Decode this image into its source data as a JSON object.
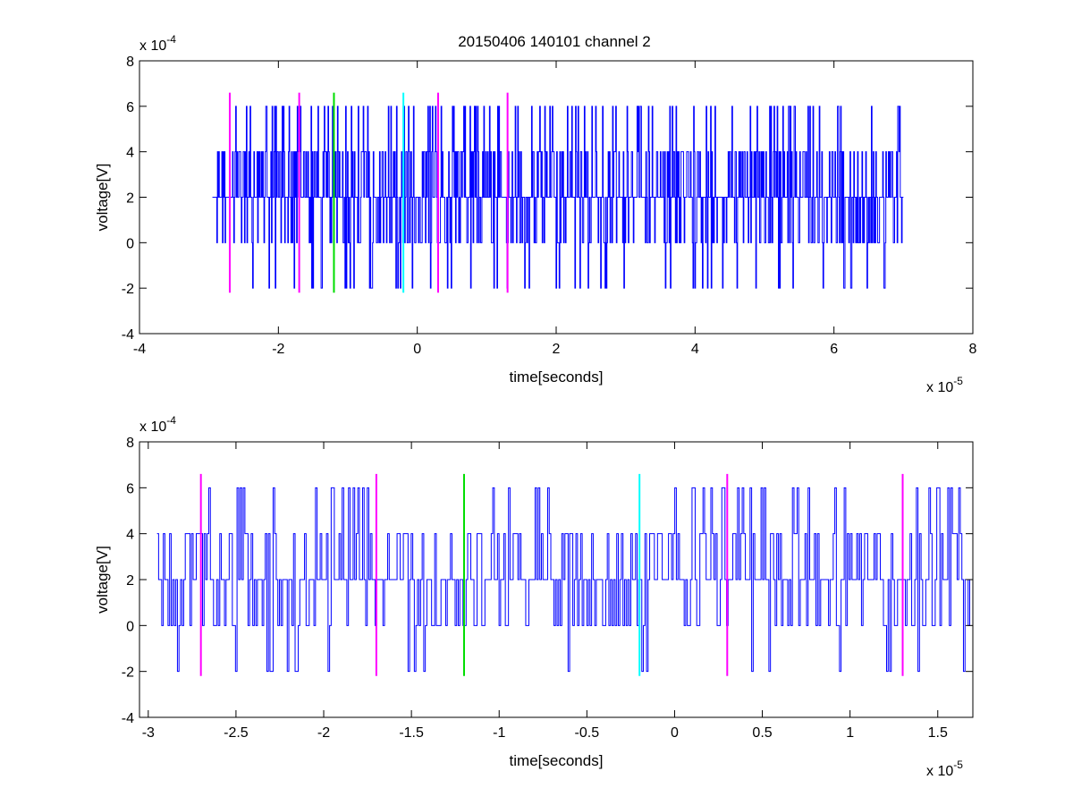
{
  "figure": {
    "title": "20150406 140101 channel 2"
  },
  "chart_data": [
    {
      "type": "line",
      "title": "20150406 140101 channel 2",
      "xlabel": "time[seconds]",
      "ylabel": "voltage[V]",
      "x_multiplier_label": "x 10",
      "x_multiplier_exp": "-5",
      "y_multiplier_label": "x 10",
      "y_multiplier_exp": "-4",
      "xlim": [
        -4e-05,
        8e-05
      ],
      "ylim": [
        -0.0004,
        0.0008
      ],
      "x_ticks": [
        -4,
        -2,
        0,
        2,
        4,
        6,
        8
      ],
      "x_tick_labels": [
        "-4",
        "-2",
        "0",
        "2",
        "4",
        "6",
        "8"
      ],
      "y_ticks": [
        -4,
        -2,
        0,
        2,
        4,
        6,
        8
      ],
      "y_tick_labels": [
        "-4",
        "-2",
        "0",
        "2",
        "4",
        "6",
        "8"
      ],
      "grid": false,
      "signal": {
        "color": "#0000ff",
        "x_start": -2.95e-05,
        "x_end": 7e-05,
        "level_step": 0.0002,
        "levels_present": [
          -0.0002,
          0,
          0.0002,
          0.0004,
          0.0006
        ],
        "baseline": 0.0002
      },
      "markers": [
        {
          "x": -2.7e-05,
          "y_range": [
            -0.00022,
            0.00066
          ],
          "color": "#ff00ff"
        },
        {
          "x": -1.7e-05,
          "y_range": [
            -0.00022,
            0.00066
          ],
          "color": "#ff00ff"
        },
        {
          "x": -1.2e-05,
          "y_range": [
            -0.00022,
            0.00066
          ],
          "color": "#00dd00"
        },
        {
          "x": -2e-06,
          "y_range": [
            -0.00022,
            0.00066
          ],
          "color": "#00ffff"
        },
        {
          "x": 3e-06,
          "y_range": [
            -0.00022,
            0.00066
          ],
          "color": "#ff00ff"
        },
        {
          "x": 1.3e-05,
          "y_range": [
            -0.00022,
            0.00066
          ],
          "color": "#ff00ff"
        }
      ]
    },
    {
      "type": "line",
      "title": "",
      "xlabel": "time[seconds]",
      "ylabel": "voltage[V]",
      "x_multiplier_label": "x 10",
      "x_multiplier_exp": "-5",
      "y_multiplier_label": "x 10",
      "y_multiplier_exp": "-4",
      "xlim": [
        -3.05e-05,
        1.7e-05
      ],
      "ylim": [
        -0.0004,
        0.0008
      ],
      "x_ticks": [
        -3,
        -2.5,
        -2,
        -1.5,
        -1,
        -0.5,
        0,
        0.5,
        1,
        1.5
      ],
      "x_tick_labels": [
        "-3",
        "-2.5",
        "-2",
        "-1.5",
        "-1",
        "-0.5",
        "0",
        "0.5",
        "1",
        "1.5"
      ],
      "y_ticks": [
        -4,
        -2,
        0,
        2,
        4,
        6,
        8
      ],
      "y_tick_labels": [
        "-4",
        "-2",
        "0",
        "2",
        "4",
        "6",
        "8"
      ],
      "grid": false,
      "signal": {
        "color": "#0000ff",
        "x_start": -2.95e-05,
        "x_end": 1.7e-05,
        "level_step": 0.0002,
        "levels_present": [
          -0.0002,
          0,
          0.0002,
          0.0004,
          0.0006
        ],
        "baseline": 0.0002
      },
      "markers": [
        {
          "x": -2.7e-05,
          "y_range": [
            -0.00022,
            0.00066
          ],
          "color": "#ff00ff"
        },
        {
          "x": -1.7e-05,
          "y_range": [
            -0.00022,
            0.00066
          ],
          "color": "#ff00ff"
        },
        {
          "x": -1.2e-05,
          "y_range": [
            -0.00022,
            0.00066
          ],
          "color": "#00dd00"
        },
        {
          "x": -2e-06,
          "y_range": [
            -0.00022,
            0.00066
          ],
          "color": "#00ffff"
        },
        {
          "x": 3e-06,
          "y_range": [
            -0.00022,
            0.00066
          ],
          "color": "#ff00ff"
        },
        {
          "x": 1.3e-05,
          "y_range": [
            -0.00022,
            0.00066
          ],
          "color": "#ff00ff"
        }
      ]
    }
  ]
}
